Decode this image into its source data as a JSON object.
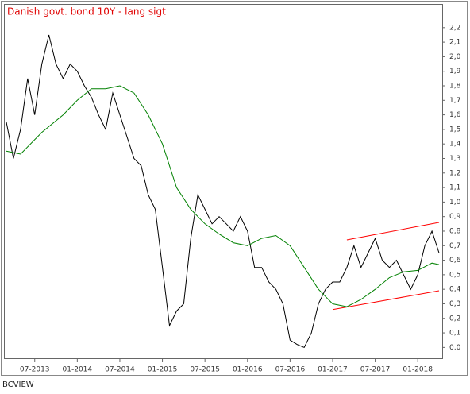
{
  "chart_data": {
    "type": "line",
    "title": "Danish govt. bond 10Y - lang sigt",
    "source": "BCVIEW",
    "x": [
      "2013-03",
      "2013-04",
      "2013-05",
      "2013-06",
      "2013-07",
      "2013-08",
      "2013-09",
      "2013-10",
      "2013-11",
      "2013-12",
      "2014-01",
      "2014-02",
      "2014-03",
      "2014-04",
      "2014-05",
      "2014-06",
      "2014-07",
      "2014-08",
      "2014-09",
      "2014-10",
      "2014-11",
      "2014-12",
      "2015-01",
      "2015-02",
      "2015-03",
      "2015-04",
      "2015-05",
      "2015-06",
      "2015-07",
      "2015-08",
      "2015-09",
      "2015-10",
      "2015-11",
      "2015-12",
      "2016-01",
      "2016-02",
      "2016-03",
      "2016-04",
      "2016-05",
      "2016-06",
      "2016-07",
      "2016-08",
      "2016-09",
      "2016-10",
      "2016-11",
      "2016-12",
      "2017-01",
      "2017-02",
      "2017-03",
      "2017-04",
      "2017-05",
      "2017-06",
      "2017-07",
      "2017-08",
      "2017-09",
      "2017-10",
      "2017-11",
      "2017-12",
      "2018-01",
      "2018-02",
      "2018-03",
      "2018-04"
    ],
    "series": [
      {
        "color": "#000000",
        "values": [
          1.55,
          1.3,
          1.5,
          1.85,
          1.6,
          1.95,
          2.15,
          1.95,
          1.85,
          1.95,
          1.9,
          1.8,
          1.72,
          1.6,
          1.5,
          1.75,
          1.6,
          1.45,
          1.3,
          1.25,
          1.05,
          0.95,
          0.55,
          0.15,
          0.25,
          0.3,
          0.75,
          1.05,
          0.95,
          0.85,
          0.9,
          0.85,
          0.8,
          0.9,
          0.8,
          0.55,
          0.55,
          0.45,
          0.4,
          0.3,
          0.05,
          0.02,
          0.0,
          0.1,
          0.3,
          0.4,
          0.45,
          0.45,
          0.55,
          0.7,
          0.55,
          0.65,
          0.75,
          0.6,
          0.55,
          0.6,
          0.5,
          0.4,
          0.5,
          0.7,
          0.8,
          0.65
        ]
      },
      {
        "color": "#008000",
        "x": [
          "2013-03",
          "2013-05",
          "2013-08",
          "2013-11",
          "2014-01",
          "2014-03",
          "2014-05",
          "2014-07",
          "2014-09",
          "2014-11",
          "2015-01",
          "2015-03",
          "2015-05",
          "2015-07",
          "2015-09",
          "2015-11",
          "2016-01",
          "2016-03",
          "2016-05",
          "2016-07",
          "2016-09",
          "2016-11",
          "2017-01",
          "2017-03",
          "2017-05",
          "2017-07",
          "2017-09",
          "2017-11",
          "2018-01",
          "2018-03",
          "2018-04"
        ],
        "values": [
          1.35,
          1.33,
          1.48,
          1.6,
          1.7,
          1.78,
          1.78,
          1.8,
          1.75,
          1.6,
          1.4,
          1.1,
          0.95,
          0.85,
          0.78,
          0.72,
          0.7,
          0.75,
          0.77,
          0.7,
          0.55,
          0.4,
          0.3,
          0.28,
          0.33,
          0.4,
          0.48,
          0.52,
          0.53,
          0.58,
          0.57
        ]
      },
      {
        "color": "#ff0000",
        "x": [
          "2017-03",
          "2018-04"
        ],
        "values": [
          0.74,
          0.86
        ]
      },
      {
        "color": "#ff0000",
        "x": [
          "2017-01",
          "2018-04"
        ],
        "values": [
          0.26,
          0.39
        ]
      }
    ],
    "xlim": [
      "2013-03",
      "2018-04"
    ],
    "xticks": [
      {
        "value": "2013-07",
        "label": "07-2013"
      },
      {
        "value": "2014-01",
        "label": "01-2014"
      },
      {
        "value": "2014-07",
        "label": "07-2014"
      },
      {
        "value": "2015-01",
        "label": "01-2015"
      },
      {
        "value": "2015-07",
        "label": "07-2015"
      },
      {
        "value": "2016-01",
        "label": "01-2016"
      },
      {
        "value": "2016-07",
        "label": "07-2016"
      },
      {
        "value": "2017-01",
        "label": "01-2017"
      },
      {
        "value": "2017-07",
        "label": "07-2017"
      },
      {
        "value": "2018-01",
        "label": "01-2018"
      }
    ],
    "ylim": [
      -0.08,
      2.27
    ],
    "yticks": [
      {
        "value": 0,
        "label": "0,0"
      },
      {
        "value": 0.1,
        "label": "0,1"
      },
      {
        "value": 0.2,
        "label": "0,2"
      },
      {
        "value": 0.3,
        "label": "0,3"
      },
      {
        "value": 0.4,
        "label": "0,4"
      },
      {
        "value": 0.5,
        "label": "0,5"
      },
      {
        "value": 0.6,
        "label": "0,6"
      },
      {
        "value": 0.7,
        "label": "0,7"
      },
      {
        "value": 0.8,
        "label": "0,8"
      },
      {
        "value": 0.9,
        "label": "0,9"
      },
      {
        "value": 1.0,
        "label": "1,0"
      },
      {
        "value": 1.1,
        "label": "1,1"
      },
      {
        "value": 1.2,
        "label": "1,2"
      },
      {
        "value": 1.3,
        "label": "1,3"
      },
      {
        "value": 1.4,
        "label": "1,4"
      },
      {
        "value": 1.5,
        "label": "1,5"
      },
      {
        "value": 1.6,
        "label": "1,6"
      },
      {
        "value": 1.7,
        "label": "1,7"
      },
      {
        "value": 1.8,
        "label": "1,8"
      },
      {
        "value": 1.9,
        "label": "1,9"
      },
      {
        "value": 2.0,
        "label": "2,0"
      },
      {
        "value": 2.1,
        "label": "2,1"
      },
      {
        "value": 2.2,
        "label": "2,2"
      }
    ],
    "grid": false
  }
}
